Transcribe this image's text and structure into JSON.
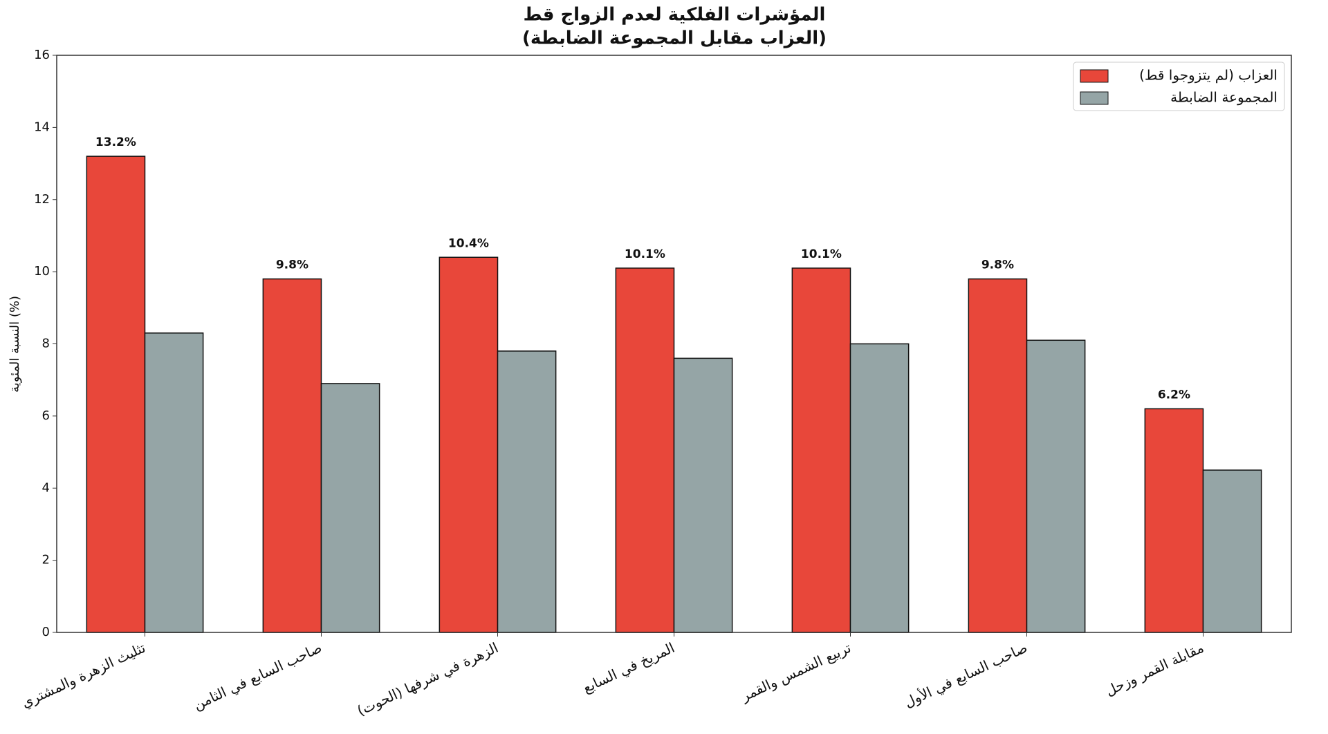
{
  "chart_data": {
    "type": "bar",
    "title": "المؤشرات الفلكية لعدم الزواج قط",
    "subtitle": "(العزاب مقابل المجموعة الضابطة)",
    "y_label": "النسبة المئوية (%)",
    "categories": [
      "تثليث الزهرة والمشتري",
      "صاحب السابع في الثامن",
      "الزهرة في شرفها (الحوت)",
      "المريخ في السابع",
      "تربيع الشمس والقمر",
      "صاحب السابع في الأول",
      "مقابلة القمر وزحل"
    ],
    "series": [
      {
        "name": "العزاب (لم يتزوجوا قط)",
        "color": "#e8473a",
        "values": [
          13.2,
          9.8,
          10.4,
          10.1,
          10.1,
          9.8,
          6.2
        ],
        "value_labels": [
          "13.2%",
          "9.8%",
          "10.4%",
          "10.1%",
          "10.1%",
          "9.8%",
          "6.2%"
        ]
      },
      {
        "name": "المجموعة الضابطة",
        "color": "#95a5a6",
        "values": [
          8.3,
          6.9,
          7.8,
          7.6,
          8.0,
          8.1,
          4.5
        ]
      }
    ],
    "ylim": [
      0,
      16
    ],
    "yticks": [
      0,
      2,
      4,
      6,
      8,
      10,
      12,
      14,
      16
    ],
    "legend": "upper right"
  }
}
